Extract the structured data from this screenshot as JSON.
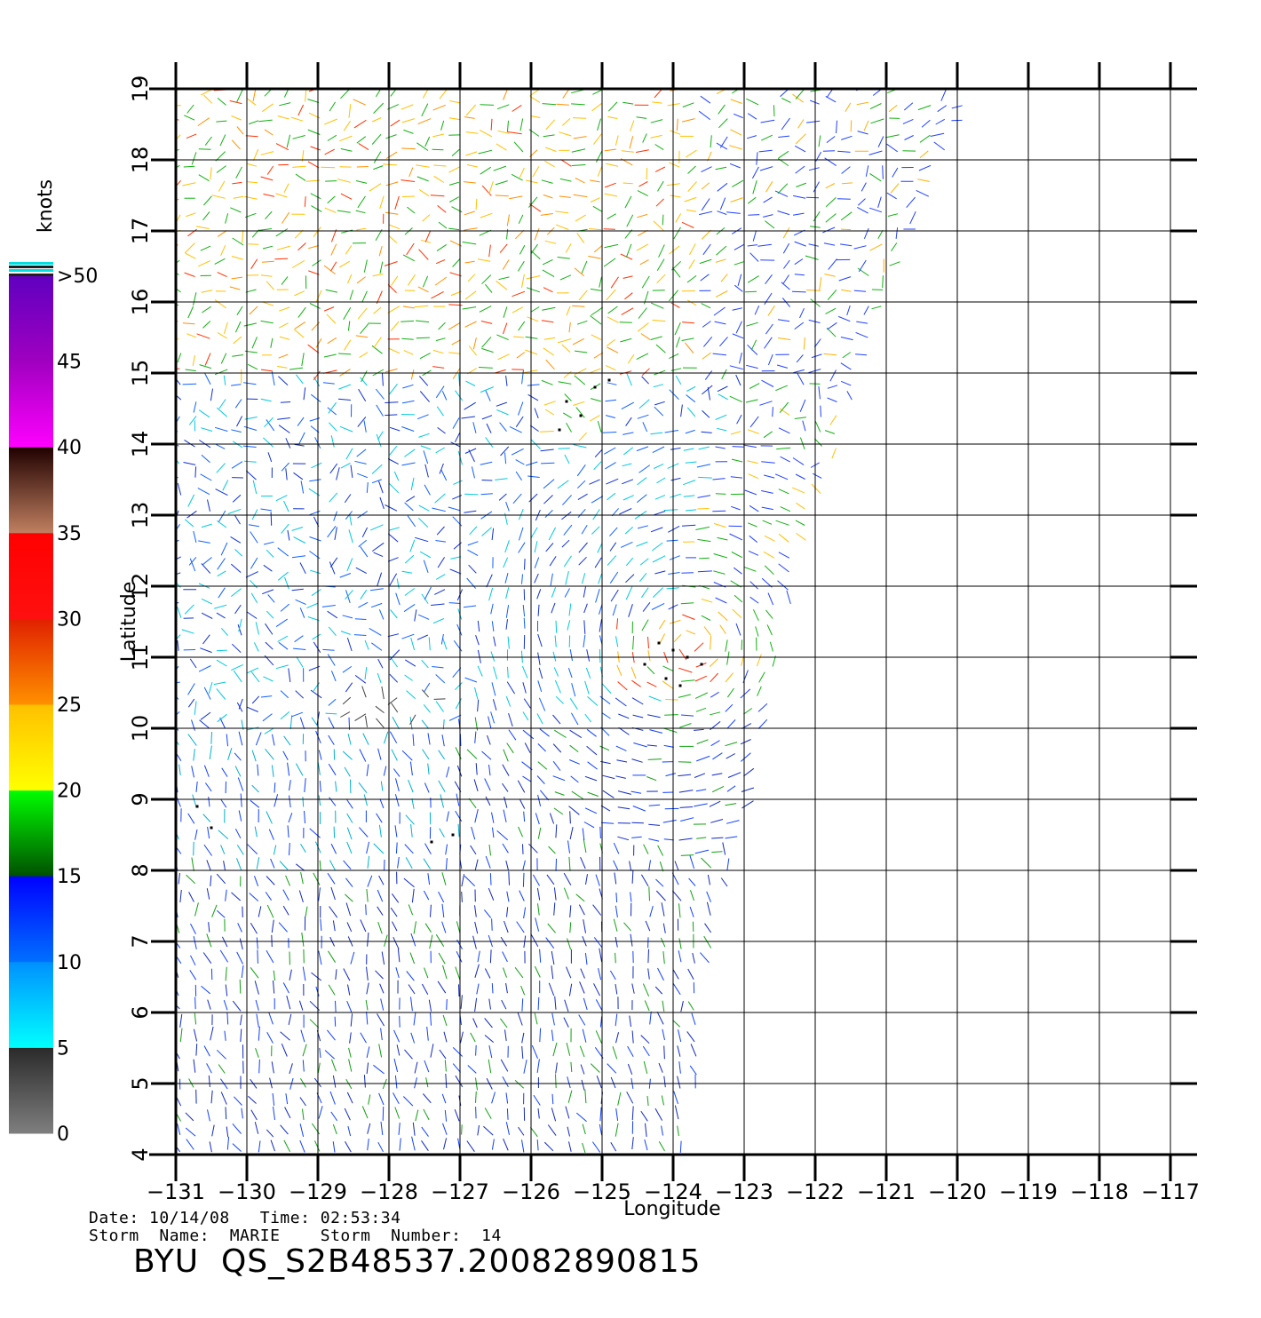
{
  "chart_data": {
    "type": "wind-vector-map",
    "xlabel": "Longitude",
    "ylabel": "Latitude",
    "xlim": [
      -131,
      -117
    ],
    "ylim": [
      4,
      19
    ],
    "x_ticks": [
      -131,
      -130,
      -129,
      -128,
      -127,
      -126,
      -125,
      -124,
      -123,
      -122,
      -121,
      -120,
      -119,
      -118,
      -117
    ],
    "y_ticks": [
      4,
      5,
      6,
      7,
      8,
      9,
      10,
      11,
      12,
      13,
      14,
      15,
      16,
      17,
      18,
      19
    ],
    "grid": true,
    "swath_east_edge": [
      [
        -119.75,
        19
      ],
      [
        -121.0,
        16
      ],
      [
        -122.0,
        13
      ],
      [
        -122.8,
        10
      ],
      [
        -123.4,
        7
      ],
      [
        -123.8,
        4
      ]
    ],
    "storm_center": [
      -123.8,
      11.2
    ],
    "speed_regions": [
      {
        "lon": [
          -131,
          -120
        ],
        "lat": [
          15,
          19
        ],
        "speed_range": "15-30"
      },
      {
        "lon": [
          -131,
          -122
        ],
        "lat": [
          10,
          15
        ],
        "speed_range": "5-15"
      },
      {
        "lon": [
          -124.8,
          -123.2
        ],
        "lat": [
          10.5,
          11.6
        ],
        "speed_range": "15-30"
      },
      {
        "lon": [
          -131,
          -123
        ],
        "lat": [
          4,
          10
        ],
        "speed_range": "10-20"
      }
    ],
    "colorbar": {
      "unit": "knots",
      "labels": [
        "0",
        "5",
        "10",
        "15",
        "20",
        "25",
        "30",
        "35",
        "40",
        "45",
        ">50"
      ],
      "colors": {
        "0-5": [
          "#7f7f7f",
          "#2a2a2a"
        ],
        "5-10": [
          "#00ffff",
          "#0090ff"
        ],
        "10-15": [
          "#0070ff",
          "#0000ff"
        ],
        "15-20": [
          "#005000",
          "#00ff00"
        ],
        "20-25": [
          "#ffff00",
          "#ffc000"
        ],
        "25-30": [
          "#ff9000",
          "#e02000"
        ],
        "30-35": [
          "#ff1010",
          "#ff0000"
        ],
        "35-40": [
          "#c08060",
          "#200000"
        ],
        "40-45": [
          "#ff00ff",
          "#a000c0"
        ],
        "45-50": [
          "#a000c0",
          "#6000c0"
        ]
      }
    }
  },
  "footer": {
    "line1": "Date: 10/14/08   Time: 02:53:34",
    "line2": "Storm  Name:  MARIE    Storm  Number:  14",
    "id": "BYU  QS_S2B48537.20082890815"
  }
}
